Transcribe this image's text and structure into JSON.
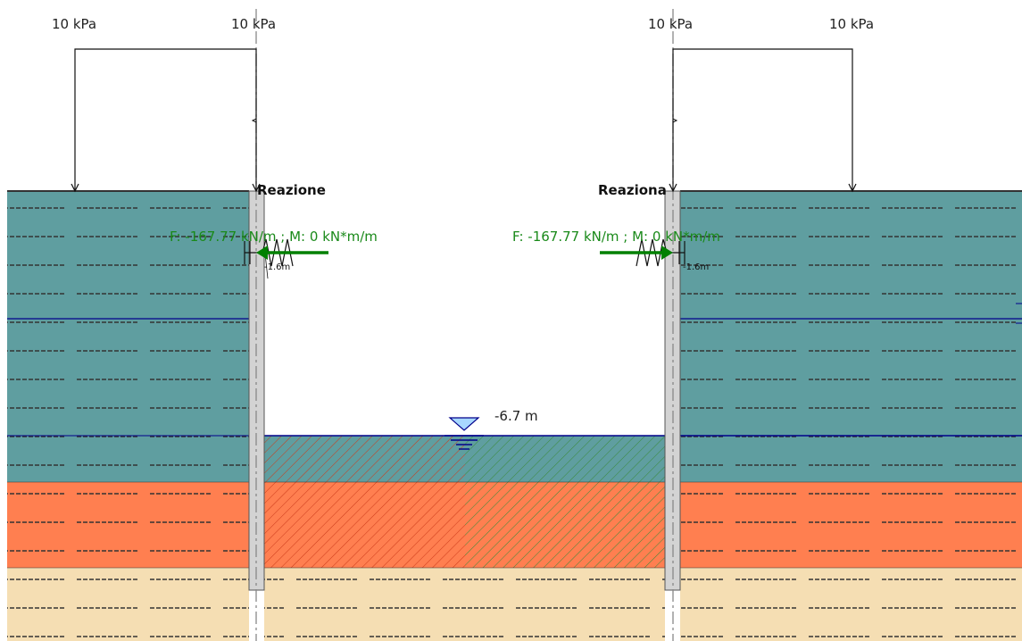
{
  "loads": {
    "left_outer": "10 kPa",
    "left_inner": "10 kPa",
    "right_inner": "10 kPa",
    "right_outer": "10 kPa"
  },
  "reactions": {
    "left_title": "Reazione",
    "right_title": "Reaziona",
    "left_force": "F: -167.77 kN/m ; M: 0 kN*m/m",
    "right_force": "F: -167.77 kN/m ; M: 0 kN*m/m",
    "left_depth": "-1.6m",
    "right_depth": "-1.6m"
  },
  "water": {
    "excavation_level": "-6.7 m"
  },
  "colors": {
    "clay_teal": "#5f9ea0",
    "clay_orange": "#ff7f50",
    "sand": "#f5deb3",
    "wall": "#d3d3d3",
    "water_line": "#00008b",
    "force_arrow": "#008000"
  }
}
